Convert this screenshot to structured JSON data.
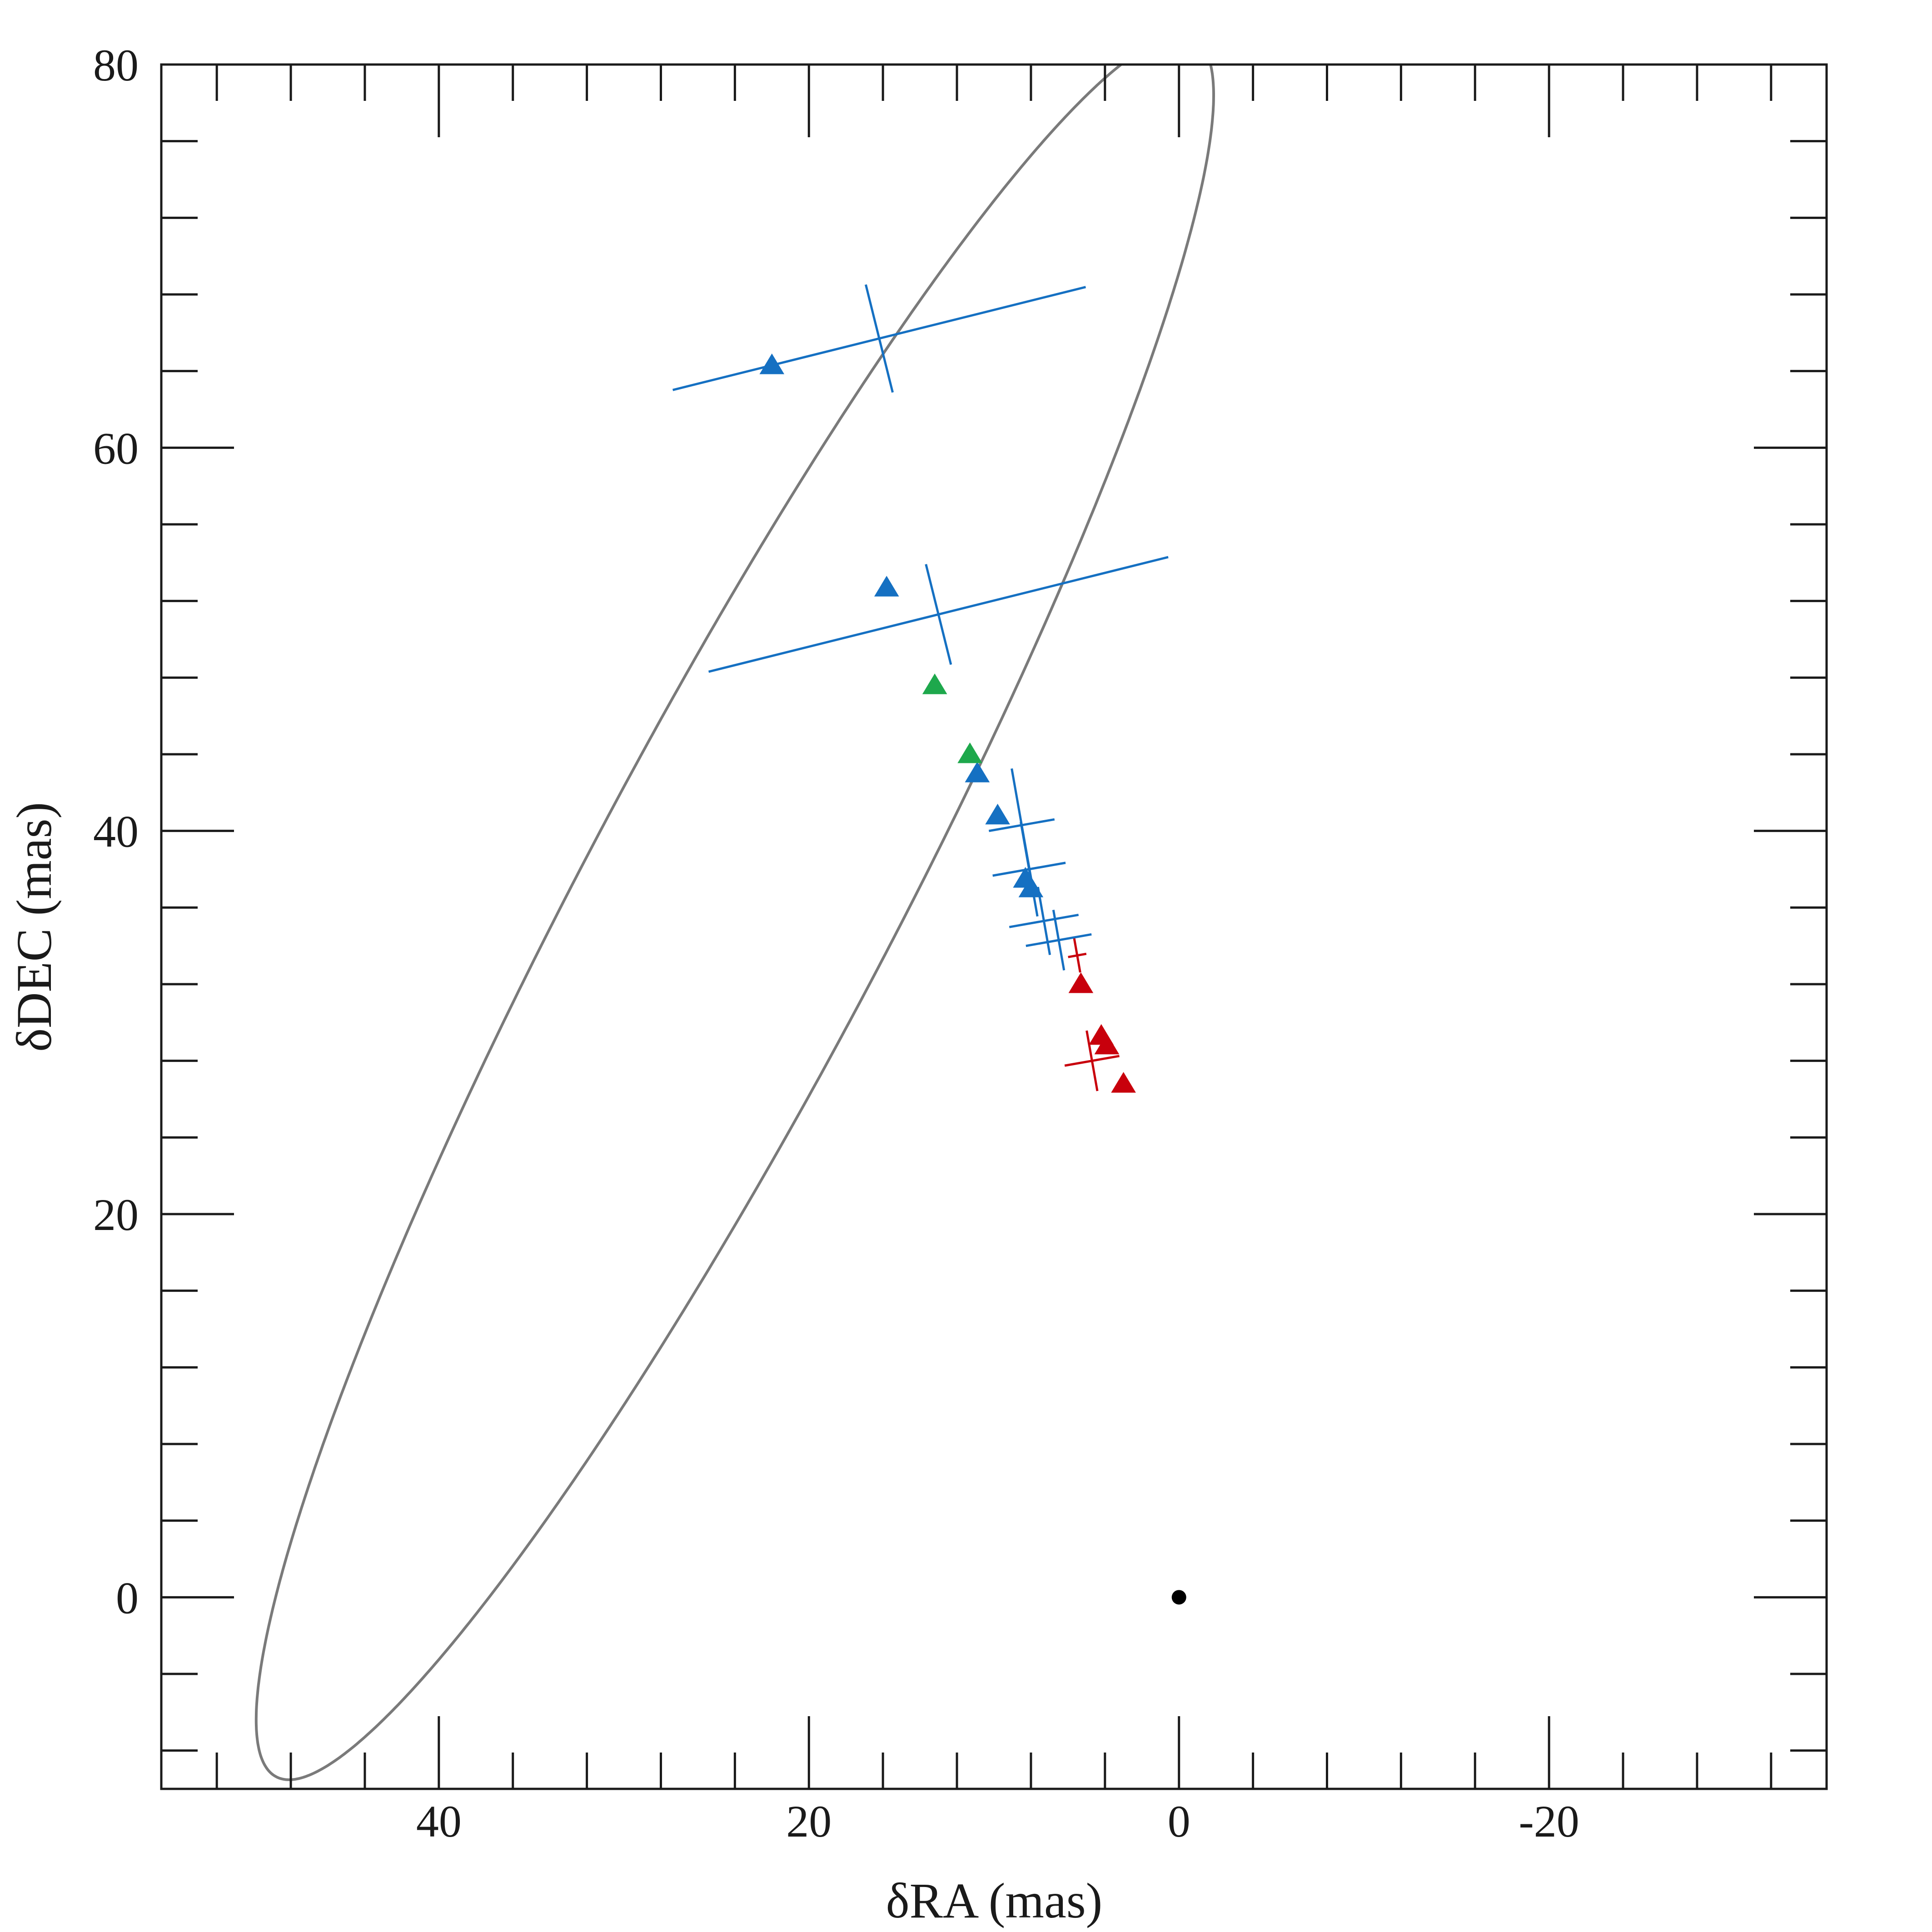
{
  "chart_data": {
    "type": "scatter",
    "title": "",
    "xlabel": "δRA (mas)",
    "ylabel": "δDEC (mas)",
    "xlim": [
      55,
      -35
    ],
    "ylim": [
      -10,
      80
    ],
    "xticks": [
      40,
      20,
      0,
      -20
    ],
    "xtick_labels": [
      "40",
      "20",
      "0",
      "-20"
    ],
    "yticks": [
      0,
      20,
      40,
      60,
      80
    ],
    "ytick_labels": [
      "0",
      "20",
      "40",
      "60",
      "80"
    ],
    "grid": false,
    "legend": "none",
    "primary_star": {
      "x": 0,
      "y": 0,
      "color": "#000000"
    },
    "orbit": {
      "type": "ellipse",
      "color": "#7a7a7a"
    },
    "series": [
      {
        "color": "#1570c2",
        "marker": "triangle",
        "points": [
          {
            "x": 22.0,
            "y": 64.3
          },
          {
            "x": 15.8,
            "y": 52.7
          },
          {
            "x": 10.9,
            "y": 43.0
          },
          {
            "x": 9.8,
            "y": 40.8
          },
          {
            "x": 8.3,
            "y": 37.5
          },
          {
            "x": 8.0,
            "y": 37.0
          }
        ]
      },
      {
        "color": "#1ea84c",
        "marker": "triangle",
        "points": [
          {
            "x": 13.2,
            "y": 47.6
          },
          {
            "x": 11.3,
            "y": 44.0
          }
        ]
      },
      {
        "color": "#c8000c",
        "marker": "triangle",
        "points": [
          {
            "x": 5.3,
            "y": 32.0
          },
          {
            "x": 4.2,
            "y": 29.3
          },
          {
            "x": 3.9,
            "y": 28.8
          },
          {
            "x": 3.0,
            "y": 26.8
          }
        ]
      }
    ],
    "error_crosses": [
      {
        "color": "#1570c2",
        "cx": 16.2,
        "cy": 65.7,
        "major_half": 11.5,
        "minor_half": 2.9,
        "angle_deg": 14
      },
      {
        "color": "#1570c2",
        "cx": 13.0,
        "cy": 51.3,
        "major_half": 12.8,
        "minor_half": 2.7,
        "angle_deg": 14
      },
      {
        "color": "#1570c2",
        "cx": 8.5,
        "cy": 40.3,
        "major_half": 1.8,
        "minor_half": 3.0,
        "angle_deg": 10
      },
      {
        "color": "#1570c2",
        "cx": 8.1,
        "cy": 38.0,
        "major_half": 2.0,
        "minor_half": 2.5,
        "angle_deg": 10
      },
      {
        "color": "#1570c2",
        "cx": 7.3,
        "cy": 35.3,
        "major_half": 1.9,
        "minor_half": 1.8,
        "angle_deg": 10
      },
      {
        "color": "#1570c2",
        "cx": 6.5,
        "cy": 34.3,
        "major_half": 1.8,
        "minor_half": 1.6,
        "angle_deg": 10
      },
      {
        "color": "#c8000c",
        "cx": 5.5,
        "cy": 33.5,
        "major_half": 0.5,
        "minor_half": 0.9,
        "angle_deg": 10
      },
      {
        "color": "#c8000c",
        "cx": 4.7,
        "cy": 28.0,
        "major_half": 1.5,
        "minor_half": 1.6,
        "angle_deg": 10
      }
    ]
  }
}
